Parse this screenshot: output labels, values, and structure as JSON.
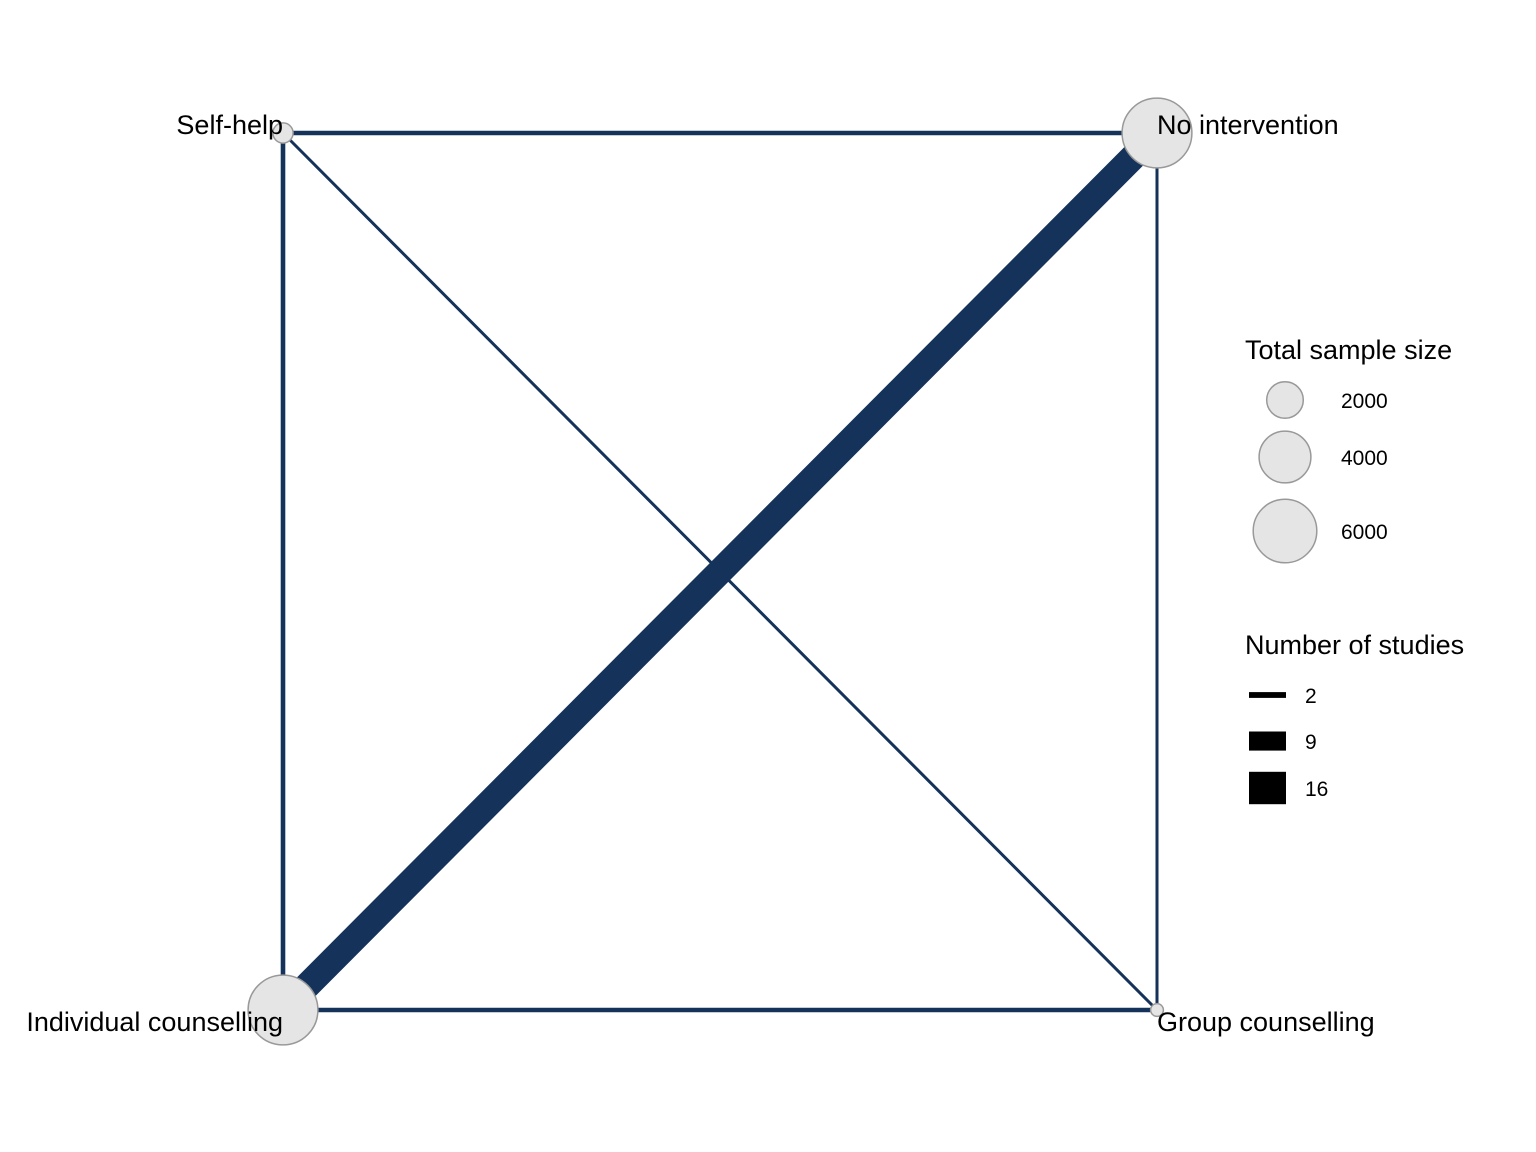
{
  "network": {
    "edge_color": "#14325a",
    "node_fill": "#e5e5e5",
    "node_stroke": "#999999",
    "nodes": [
      {
        "id": "self_help",
        "label": "Self-help",
        "sample_size": 500
      },
      {
        "id": "no_intervention",
        "label": "No intervention",
        "sample_size": 6000
      },
      {
        "id": "individual_counselling",
        "label": "Individual counselling",
        "sample_size": 6000
      },
      {
        "id": "group_counselling",
        "label": "Group counselling",
        "sample_size": 200
      }
    ],
    "edges": [
      {
        "from": "self_help",
        "to": "no_intervention",
        "studies": 2
      },
      {
        "from": "self_help",
        "to": "individual_counselling",
        "studies": 2
      },
      {
        "from": "self_help",
        "to": "group_counselling",
        "studies": 1
      },
      {
        "from": "no_intervention",
        "to": "individual_counselling",
        "studies": 16
      },
      {
        "from": "no_intervention",
        "to": "group_counselling",
        "studies": 1
      },
      {
        "from": "individual_counselling",
        "to": "group_counselling",
        "studies": 2
      }
    ]
  },
  "legend": {
    "size_title": "Total sample size",
    "size_items": [
      {
        "label": "2000",
        "value": 2000
      },
      {
        "label": "4000",
        "value": 4000
      },
      {
        "label": "6000",
        "value": 6000
      }
    ],
    "width_title": "Number of studies",
    "width_items": [
      {
        "label": "2",
        "value": 2
      },
      {
        "label": "9",
        "value": 9
      },
      {
        "label": "16",
        "value": 16
      }
    ]
  }
}
